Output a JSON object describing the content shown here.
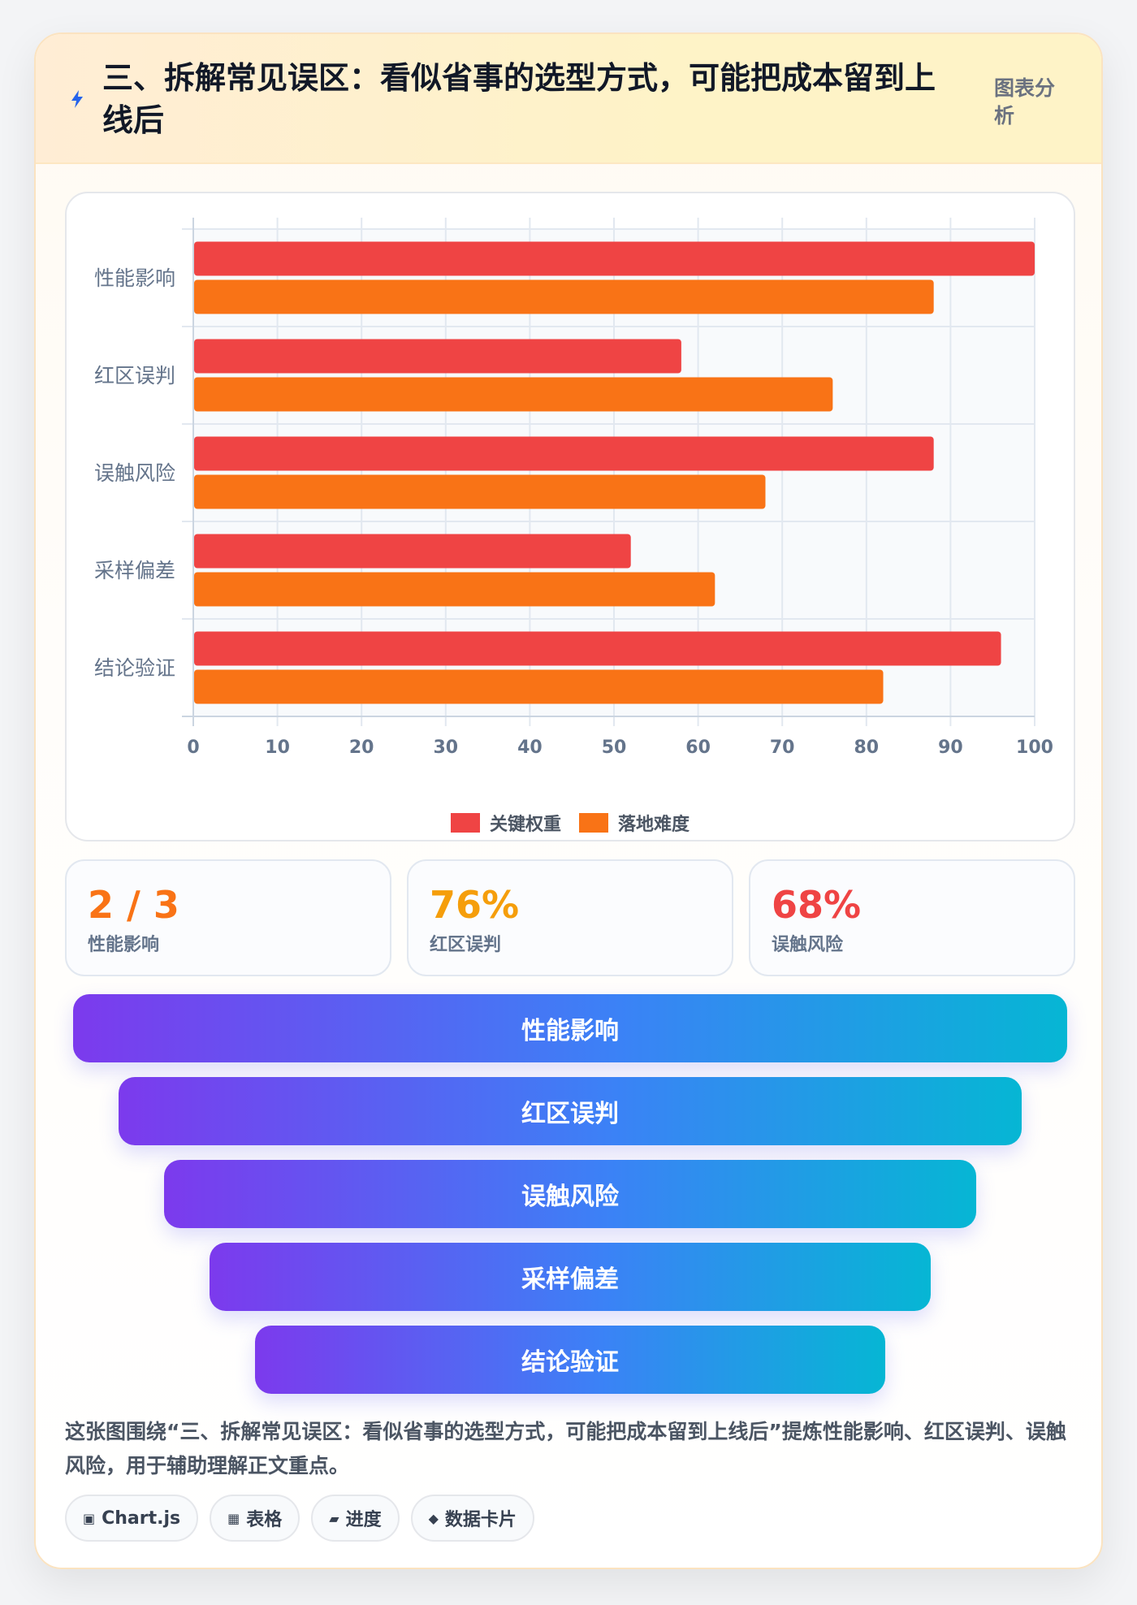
{
  "header": {
    "title": "三、拆解常见误区：看似省事的选型方式，可能把成本留到上线后",
    "tag": "图表分析",
    "icon": "lightning-icon",
    "icon_color": "#2563eb"
  },
  "chart_data": {
    "type": "bar",
    "orientation": "horizontal",
    "categories": [
      "性能影响",
      "红区误判",
      "误触风险",
      "采样偏差",
      "结论验证"
    ],
    "series": [
      {
        "name": "关键权重",
        "color": "#ef4444",
        "values": [
          100,
          58,
          88,
          52,
          96
        ]
      },
      {
        "name": "落地难度",
        "color": "#f97316",
        "values": [
          88,
          76,
          68,
          62,
          82
        ]
      }
    ],
    "xlim": [
      0,
      100
    ],
    "x_ticks": [
      "0",
      "10",
      "20",
      "30",
      "40",
      "50",
      "60",
      "70",
      "80",
      "90",
      "100"
    ],
    "grid": true,
    "legend_position": "bottom-center"
  },
  "stats": [
    {
      "value": "2 / 3",
      "label": "性能影响",
      "color": "#f97316"
    },
    {
      "value": "76%",
      "label": "红区误判",
      "color": "#f59e0b"
    },
    {
      "value": "68%",
      "label": "误触风险",
      "color": "#ef4444"
    }
  ],
  "funnel": [
    "性能影响",
    "红区误判",
    "误触风险",
    "采样偏差",
    "结论验证"
  ],
  "summary": "这张图围绕“三、拆解常见误区：看似省事的选型方式，可能把成本留到上线后”提炼性能影响、红区误判、误触风险，用于辅助理解正文重点。",
  "tags": [
    {
      "icon": "▣",
      "icon_name": "chart-icon",
      "label": "Chart.js"
    },
    {
      "icon": "▦",
      "icon_name": "table-icon",
      "label": "表格"
    },
    {
      "icon": "▰",
      "icon_name": "progress-icon",
      "label": "进度"
    },
    {
      "icon": "◆",
      "icon_name": "card-icon",
      "label": "数据卡片"
    }
  ]
}
